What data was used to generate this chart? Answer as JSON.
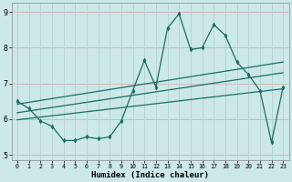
{
  "xlabel": "Humidex (Indice chaleur)",
  "background_color": "#cce8e8",
  "grid_color_h": "#d4b8b8",
  "grid_color_v": "#b8d4d4",
  "line_color": "#1a6e64",
  "xlim": [
    -0.5,
    23.5
  ],
  "ylim": [
    4.85,
    9.25
  ],
  "xticks": [
    0,
    1,
    2,
    3,
    4,
    5,
    6,
    7,
    8,
    9,
    10,
    11,
    12,
    13,
    14,
    15,
    16,
    17,
    18,
    19,
    20,
    21,
    22,
    23
  ],
  "yticks": [
    5,
    6,
    7,
    8,
    9
  ],
  "x": [
    0,
    1,
    2,
    3,
    4,
    5,
    6,
    7,
    8,
    9,
    10,
    11,
    12,
    13,
    14,
    15,
    16,
    17,
    18,
    19,
    20,
    21,
    22,
    23
  ],
  "y_main": [
    6.5,
    6.3,
    5.95,
    5.8,
    5.4,
    5.4,
    5.5,
    5.45,
    5.5,
    5.95,
    6.8,
    7.65,
    6.9,
    8.55,
    8.95,
    7.95,
    8.0,
    8.65,
    8.35,
    7.6,
    7.25,
    6.8,
    5.35,
    6.9
  ],
  "trend1_start": 6.42,
  "trend1_end": 7.6,
  "trend2_start": 6.18,
  "trend2_end": 7.3,
  "trend3_start": 5.98,
  "trend3_end": 6.85
}
